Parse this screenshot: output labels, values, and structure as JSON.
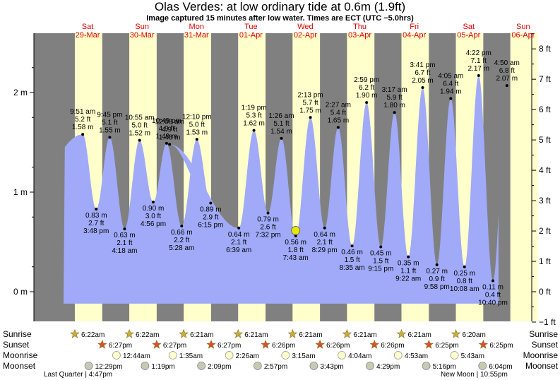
{
  "title": "Olas Verdes: at low  ordinary tide at 0.6m (1.9ft)",
  "subtitle": "Image captured 15 minutes after low water. Times are ECT (UTC −5.0hrs)",
  "colors": {
    "night": "#808080",
    "day": "#ffffcc",
    "water": "#a0aaf8",
    "day_label": "#e00000",
    "current_marker": "#e6e600"
  },
  "chart_data": {
    "type": "area",
    "title": "Olas Verdes: at low  ordinary tide at 0.6m (1.9ft)",
    "ylabel_left": "m",
    "ylabel_right": "ft",
    "left_axis_ticks": [
      "0 m",
      "1 m",
      "2 m"
    ],
    "right_axis_ticks": [
      "−1 ft",
      "0 ft",
      "1 ft",
      "2 ft",
      "3 ft",
      "4 ft",
      "5 ft",
      "6 ft",
      "7 ft",
      "8 ft"
    ],
    "ylim_m": [
      -0.3,
      2.55
    ],
    "days": [
      {
        "dow": "Sat",
        "date": "29-Mar"
      },
      {
        "dow": "Sun",
        "date": "30-Mar"
      },
      {
        "dow": "Mon",
        "date": "31-Mar"
      },
      {
        "dow": "Tue",
        "date": "01-Apr"
      },
      {
        "dow": "Wed",
        "date": "02-Apr"
      },
      {
        "dow": "Thu",
        "date": "03-Apr"
      },
      {
        "dow": "Fri",
        "date": "04-Apr"
      },
      {
        "dow": "Sat",
        "date": "05-Apr"
      },
      {
        "dow": "Sun",
        "date": "06-Apr"
      }
    ],
    "extremes": [
      {
        "day": 0,
        "time": "9:51 am",
        "m": 1.58,
        "ft": "5.2 ft",
        "hl": "high"
      },
      {
        "day": 0,
        "time": "3:48 pm",
        "m": 0.83,
        "ft": "2.7 ft",
        "hl": "low"
      },
      {
        "day": 0,
        "time": "9:45 pm",
        "m": 1.55,
        "ft": "5.1 ft",
        "hl": "high"
      },
      {
        "day": 1,
        "time": "4:18 am",
        "m": 0.63,
        "ft": "2.1 ft",
        "hl": "low"
      },
      {
        "day": 1,
        "time": "10:55 am",
        "m": 1.52,
        "ft": "5.0 ft",
        "hl": "high"
      },
      {
        "day": 1,
        "time": "4:56 pm",
        "m": 0.9,
        "ft": "3.0 ft",
        "hl": "low"
      },
      {
        "day": 1,
        "time": "10:49 pm",
        "m": 1.49,
        "ft": "4.9 ft",
        "hl": "high"
      },
      {
        "day": 2,
        "time": "5:28 am",
        "m": 0.66,
        "ft": "2.2 ft",
        "hl": "low"
      },
      {
        "day": 2,
        "time": "12:10 pm",
        "m": 1.53,
        "ft": "5.0 ft",
        "hl": "high"
      },
      {
        "day": 2,
        "time": "6:15 pm",
        "m": 0.89,
        "ft": "2.9 ft",
        "hl": "low"
      },
      {
        "day": 2,
        "time": "12:08 am",
        "m": 1.48,
        "ft": "4.9 ft",
        "hl": "high"
      },
      {
        "day": 3,
        "time": "6:39 am",
        "m": 0.64,
        "ft": "2.1 ft",
        "hl": "low"
      },
      {
        "day": 3,
        "time": "1:19 pm",
        "m": 1.62,
        "ft": "5.3 ft",
        "hl": "high"
      },
      {
        "day": 3,
        "time": "7:32 pm",
        "m": 0.79,
        "ft": "2.6 ft",
        "hl": "low"
      },
      {
        "day": 4,
        "time": "1:26 am",
        "m": 1.54,
        "ft": "5.1 ft",
        "hl": "high"
      },
      {
        "day": 4,
        "time": "7:43 am",
        "m": 0.56,
        "ft": "1.8 ft",
        "hl": "low"
      },
      {
        "day": 4,
        "time": "2:13 pm",
        "m": 1.75,
        "ft": "5.7 ft",
        "hl": "high"
      },
      {
        "day": 4,
        "time": "8:29 pm",
        "m": 0.64,
        "ft": "2.1 ft",
        "hl": "low"
      },
      {
        "day": 5,
        "time": "2:27 am",
        "m": 1.65,
        "ft": "5.4 ft",
        "hl": "high"
      },
      {
        "day": 5,
        "time": "8:35 am",
        "m": 0.46,
        "ft": "1.5 ft",
        "hl": "low"
      },
      {
        "day": 5,
        "time": "2:59 pm",
        "m": 1.9,
        "ft": "6.2 ft",
        "hl": "high"
      },
      {
        "day": 5,
        "time": "9:15 pm",
        "m": 0.45,
        "ft": "1.5 ft",
        "hl": "low"
      },
      {
        "day": 6,
        "time": "3:17 am",
        "m": 1.8,
        "ft": "5.9 ft",
        "hl": "high"
      },
      {
        "day": 6,
        "time": "9:22 am",
        "m": 0.35,
        "ft": "1.1 ft",
        "hl": "low"
      },
      {
        "day": 6,
        "time": "3:41 pm",
        "m": 2.05,
        "ft": "6.7 ft",
        "hl": "high"
      },
      {
        "day": 6,
        "time": "9:58 pm",
        "m": 0.27,
        "ft": "0.9 ft",
        "hl": "low"
      },
      {
        "day": 7,
        "time": "4:05 am",
        "m": 1.94,
        "ft": "6.4 ft",
        "hl": "high"
      },
      {
        "day": 7,
        "time": "10:08 am",
        "m": 0.25,
        "ft": "0.8 ft",
        "hl": "low"
      },
      {
        "day": 7,
        "time": "4:22 pm",
        "m": 2.17,
        "ft": "7.1 ft",
        "hl": "high"
      },
      {
        "day": 7,
        "time": "10:40 pm",
        "m": 0.11,
        "ft": "0.4 ft",
        "hl": "low"
      },
      {
        "day": 8,
        "time": "4:50 am",
        "m": 2.07,
        "ft": "6.8 ft",
        "hl": "high"
      }
    ],
    "current": {
      "m": 0.6
    }
  },
  "astro": {
    "row_labels": {
      "sunrise": "Sunrise",
      "sunset": "Sunset",
      "moonrise": "Moonrise",
      "moonset": "Moonset"
    },
    "sunrise": [
      "6:22am",
      "6:22am",
      "6:21am",
      "6:21am",
      "6:21am",
      "6:21am",
      "6:21am",
      "6:20am"
    ],
    "sunset": [
      "6:27pm",
      "6:27pm",
      "6:27pm",
      "6:26pm",
      "6:26pm",
      "6:26pm",
      "6:25pm",
      "6:25pm"
    ],
    "moonrise": [
      "12:44am",
      "1:35am",
      "2:26am",
      "3:15am",
      "4:04am",
      "4:53am",
      "5:43am"
    ],
    "moonset": [
      "12:29pm",
      "1:19pm",
      "2:09pm",
      "2:57pm",
      "3:43pm",
      "4:29pm",
      "5:16pm",
      "6:04pm"
    ],
    "last_quarter": "Last Quarter | 4:47pm",
    "new_moon": "New Moon | 10:55pm"
  }
}
